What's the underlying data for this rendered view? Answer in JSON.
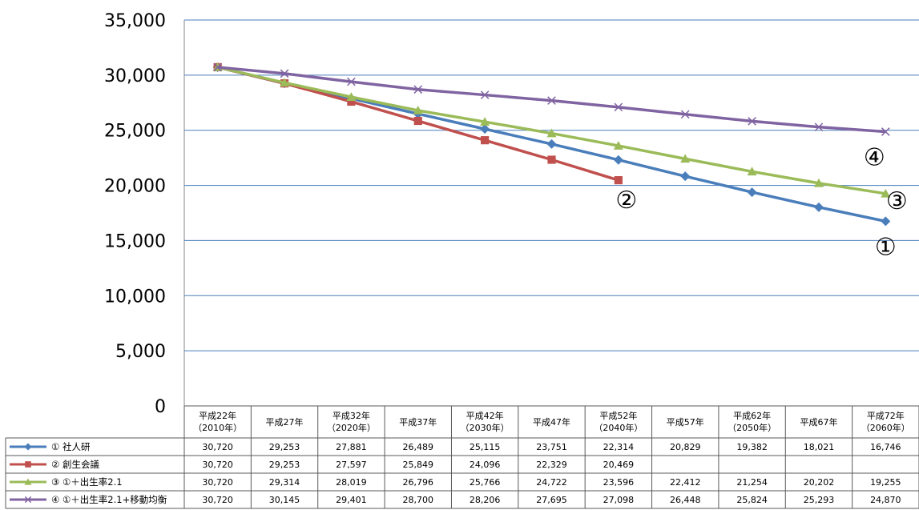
{
  "chart_data": {
    "type": "line",
    "title": "",
    "xlabel": "",
    "ylabel": "",
    "ylim": [
      0,
      35000
    ],
    "y_ticks": [
      "0",
      "5,000",
      "10,000",
      "15,000",
      "20,000",
      "25,000",
      "30,000",
      "35,000"
    ],
    "grid": true,
    "categories": [
      {
        "line1": "平成22年",
        "line2": "（2010年）"
      },
      {
        "line1": "平成27年",
        "line2": ""
      },
      {
        "line1": "平成32年",
        "line2": "（2020年）"
      },
      {
        "line1": "平成37年",
        "line2": ""
      },
      {
        "line1": "平成42年",
        "line2": "（2030年）"
      },
      {
        "line1": "平成47年",
        "line2": ""
      },
      {
        "line1": "平成52年",
        "line2": "（2040年）"
      },
      {
        "line1": "平成57年",
        "line2": ""
      },
      {
        "line1": "平成62年",
        "line2": "（2050年）"
      },
      {
        "line1": "平成67年",
        "line2": ""
      },
      {
        "line1": "平成72年",
        "line2": "（2060年）"
      }
    ],
    "series": [
      {
        "name": "① 社人研",
        "label": "①",
        "color": "#4a7ebb",
        "marker": "diamond",
        "values": [
          30720,
          29253,
          27881,
          26489,
          25115,
          23751,
          22314,
          20829,
          19382,
          18021,
          16746
        ],
        "display": [
          "30,720",
          "29,253",
          "27,881",
          "26,489",
          "25,115",
          "23,751",
          "22,314",
          "20,829",
          "19,382",
          "18,021",
          "16,746"
        ]
      },
      {
        "name": "② 創生会議",
        "label": "②",
        "color": "#c0504d",
        "marker": "square",
        "values": [
          30720,
          29253,
          27597,
          25849,
          24096,
          22329,
          20469,
          null,
          null,
          null,
          null
        ],
        "display": [
          "30,720",
          "29,253",
          "27,597",
          "25,849",
          "24,096",
          "22,329",
          "20,469",
          "",
          "",
          "",
          ""
        ]
      },
      {
        "name": "③ ①＋出生率2.1",
        "label": "③",
        "color": "#9bbb59",
        "marker": "triangle",
        "values": [
          30720,
          29314,
          28019,
          26796,
          25766,
          24722,
          23596,
          22412,
          21254,
          20202,
          19255
        ],
        "display": [
          "30,720",
          "29,314",
          "28,019",
          "26,796",
          "25,766",
          "24,722",
          "23,596",
          "22,412",
          "21,254",
          "20,202",
          "19,255"
        ]
      },
      {
        "name": "④ ①＋出生率2.1+移動均衡",
        "label": "④",
        "color": "#8064a2",
        "marker": "x",
        "values": [
          30720,
          30145,
          29401,
          28700,
          28206,
          27695,
          27098,
          26448,
          25824,
          25293,
          24870
        ],
        "display": [
          "30,720",
          "30,145",
          "29,401",
          "28,700",
          "28,206",
          "27,695",
          "27,098",
          "26,448",
          "25,824",
          "25,293",
          "24,870"
        ]
      }
    ]
  }
}
